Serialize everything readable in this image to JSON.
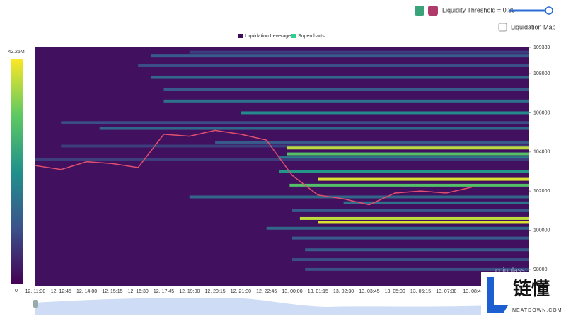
{
  "controls": {
    "threshold_label": "Liquidity Threshold = 0.85",
    "map_label": "Liquidation Map"
  },
  "watermark": {
    "brand": "coinglass",
    "site_name": "链懂",
    "site_url": "NEATDOWN.COM"
  },
  "chart_data": {
    "type": "heatmap",
    "legend": [
      "Liquidation Leverage",
      "Supercharts"
    ],
    "legend_colors": [
      "#3b0f5c",
      "#2fcf8f"
    ],
    "categories": [
      "12, 11:30",
      "12, 12:45",
      "12, 14:00",
      "12, 15:15",
      "12, 16:30",
      "12, 17:45",
      "12, 19:00",
      "12, 20:15",
      "12, 21:30",
      "12, 22:45",
      "13, 00:00",
      "13, 01:15",
      "13, 02:30",
      "13, 03:45",
      "13, 05:00",
      "13, 06:15",
      "13, 07:30",
      "13, 08:4"
    ],
    "series": [
      {
        "name": "price",
        "color": "#e0506e",
        "values": [
          103300,
          103100,
          103500,
          103400,
          103200,
          104900,
          104800,
          105100,
          104900,
          104600,
          102800,
          101800,
          101600,
          101300,
          101900,
          102000,
          101900,
          102200
        ]
      }
    ],
    "ylim": [
      97130,
      109339
    ],
    "yticks": [
      98000,
      100000,
      102000,
      104000,
      106000,
      108000,
      109339
    ],
    "colorbar": {
      "lim": [
        0,
        42.26
      ],
      "ticks": [
        0,
        {
          "value": 42.26,
          "label": "42.26M"
        }
      ]
    },
    "bands": [
      {
        "price": 109100,
        "start": 6,
        "value": 8
      },
      {
        "price": 108900,
        "start": 4.5,
        "value": 12
      },
      {
        "price": 108400,
        "start": 4,
        "value": 10
      },
      {
        "price": 107800,
        "start": 4.5,
        "value": 14
      },
      {
        "price": 107200,
        "start": 5,
        "value": 12
      },
      {
        "price": 106600,
        "start": 5,
        "value": 16
      },
      {
        "price": 106000,
        "start": 8,
        "value": 20
      },
      {
        "price": 105500,
        "start": 1,
        "value": 10
      },
      {
        "price": 105200,
        "start": 2.5,
        "value": 14
      },
      {
        "price": 104500,
        "start": 7,
        "value": 12
      },
      {
        "price": 104300,
        "start": 1,
        "value": 8
      },
      {
        "price": 104200,
        "start": 9.8,
        "value": 38
      },
      {
        "price": 103900,
        "start": 9.8,
        "value": 30
      },
      {
        "price": 103700,
        "start": 9.5,
        "value": 18
      },
      {
        "price": 103600,
        "start": 0,
        "value": 8
      },
      {
        "price": 103000,
        "start": 9.5,
        "value": 22
      },
      {
        "price": 102600,
        "start": 11,
        "value": 40
      },
      {
        "price": 102300,
        "start": 9.9,
        "value": 30
      },
      {
        "price": 101700,
        "start": 6,
        "value": 14
      },
      {
        "price": 101400,
        "start": 12,
        "value": 16
      },
      {
        "price": 101000,
        "start": 10,
        "value": 12
      },
      {
        "price": 100600,
        "start": 10.3,
        "value": 38
      },
      {
        "price": 100400,
        "start": 11,
        "value": 40
      },
      {
        "price": 100100,
        "start": 9,
        "value": 14
      },
      {
        "price": 99600,
        "start": 10,
        "value": 12
      },
      {
        "price": 99000,
        "start": 10.5,
        "value": 12
      },
      {
        "price": 98500,
        "start": 10,
        "value": 10
      },
      {
        "price": 98000,
        "start": 10.5,
        "value": 10
      }
    ]
  }
}
